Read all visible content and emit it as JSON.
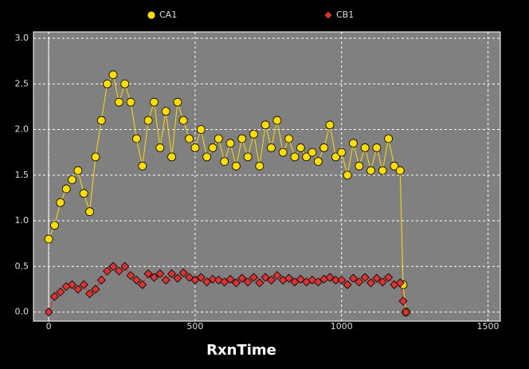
{
  "chart_data": {
    "type": "scatter",
    "x_label": "RxnTime",
    "x": [
      0,
      20,
      40,
      60,
      80,
      100,
      120,
      140,
      160,
      180,
      200,
      220,
      240,
      260,
      280,
      300,
      320,
      340,
      360,
      380,
      400,
      420,
      440,
      460,
      480,
      500,
      520,
      540,
      560,
      580,
      600,
      620,
      640,
      660,
      680,
      700,
      720,
      740,
      760,
      780,
      800,
      820,
      840,
      860,
      880,
      900,
      920,
      940,
      960,
      980,
      1000,
      1020,
      1040,
      1060,
      1080,
      1100,
      1120,
      1140,
      1160,
      1180,
      1200,
      1210,
      1220
    ],
    "series": [
      {
        "name": "CA1",
        "color": "#ffdd00",
        "marker": "circle",
        "values": [
          0.8,
          0.95,
          1.2,
          1.35,
          1.45,
          1.55,
          1.3,
          1.1,
          1.7,
          2.1,
          2.5,
          2.6,
          2.3,
          2.5,
          2.3,
          1.9,
          1.6,
          2.1,
          2.3,
          1.8,
          2.2,
          1.7,
          2.3,
          2.1,
          1.9,
          1.8,
          2.0,
          1.7,
          1.8,
          1.9,
          1.65,
          1.85,
          1.6,
          1.9,
          1.7,
          1.95,
          1.6,
          2.05,
          1.8,
          2.1,
          1.75,
          1.9,
          1.7,
          1.8,
          1.7,
          1.75,
          1.65,
          1.8,
          2.05,
          1.7,
          1.75,
          1.5,
          1.85,
          1.6,
          1.8,
          1.55,
          1.8,
          1.55,
          1.9,
          1.6,
          1.55,
          0.3,
          0.0
        ]
      },
      {
        "name": "CB1",
        "color": "#dd3333",
        "marker": "diamond",
        "values": [
          0.0,
          0.17,
          0.22,
          0.28,
          0.3,
          0.25,
          0.3,
          0.2,
          0.25,
          0.35,
          0.45,
          0.5,
          0.45,
          0.5,
          0.4,
          0.35,
          0.3,
          0.42,
          0.38,
          0.42,
          0.35,
          0.42,
          0.37,
          0.43,
          0.38,
          0.35,
          0.38,
          0.33,
          0.36,
          0.35,
          0.33,
          0.36,
          0.32,
          0.37,
          0.33,
          0.38,
          0.32,
          0.38,
          0.35,
          0.4,
          0.35,
          0.37,
          0.33,
          0.36,
          0.33,
          0.35,
          0.33,
          0.36,
          0.38,
          0.35,
          0.35,
          0.3,
          0.37,
          0.33,
          0.38,
          0.32,
          0.37,
          0.33,
          0.38,
          0.3,
          0.32,
          0.12,
          0.0
        ]
      }
    ],
    "xlim": [
      -52,
      1542
    ],
    "ylim": [
      -0.1,
      3.07
    ],
    "xticks": [
      0,
      500,
      1000,
      1500
    ],
    "yticks": [
      {
        "value": 0,
        "label": "0.0"
      },
      0.5,
      {
        "value": 1,
        "label": "1.0"
      },
      1.5,
      {
        "value": 2,
        "label": "2.0"
      },
      2.5,
      {
        "value": 3,
        "label": "3.0"
      }
    ],
    "grid": true,
    "legend": "top"
  }
}
